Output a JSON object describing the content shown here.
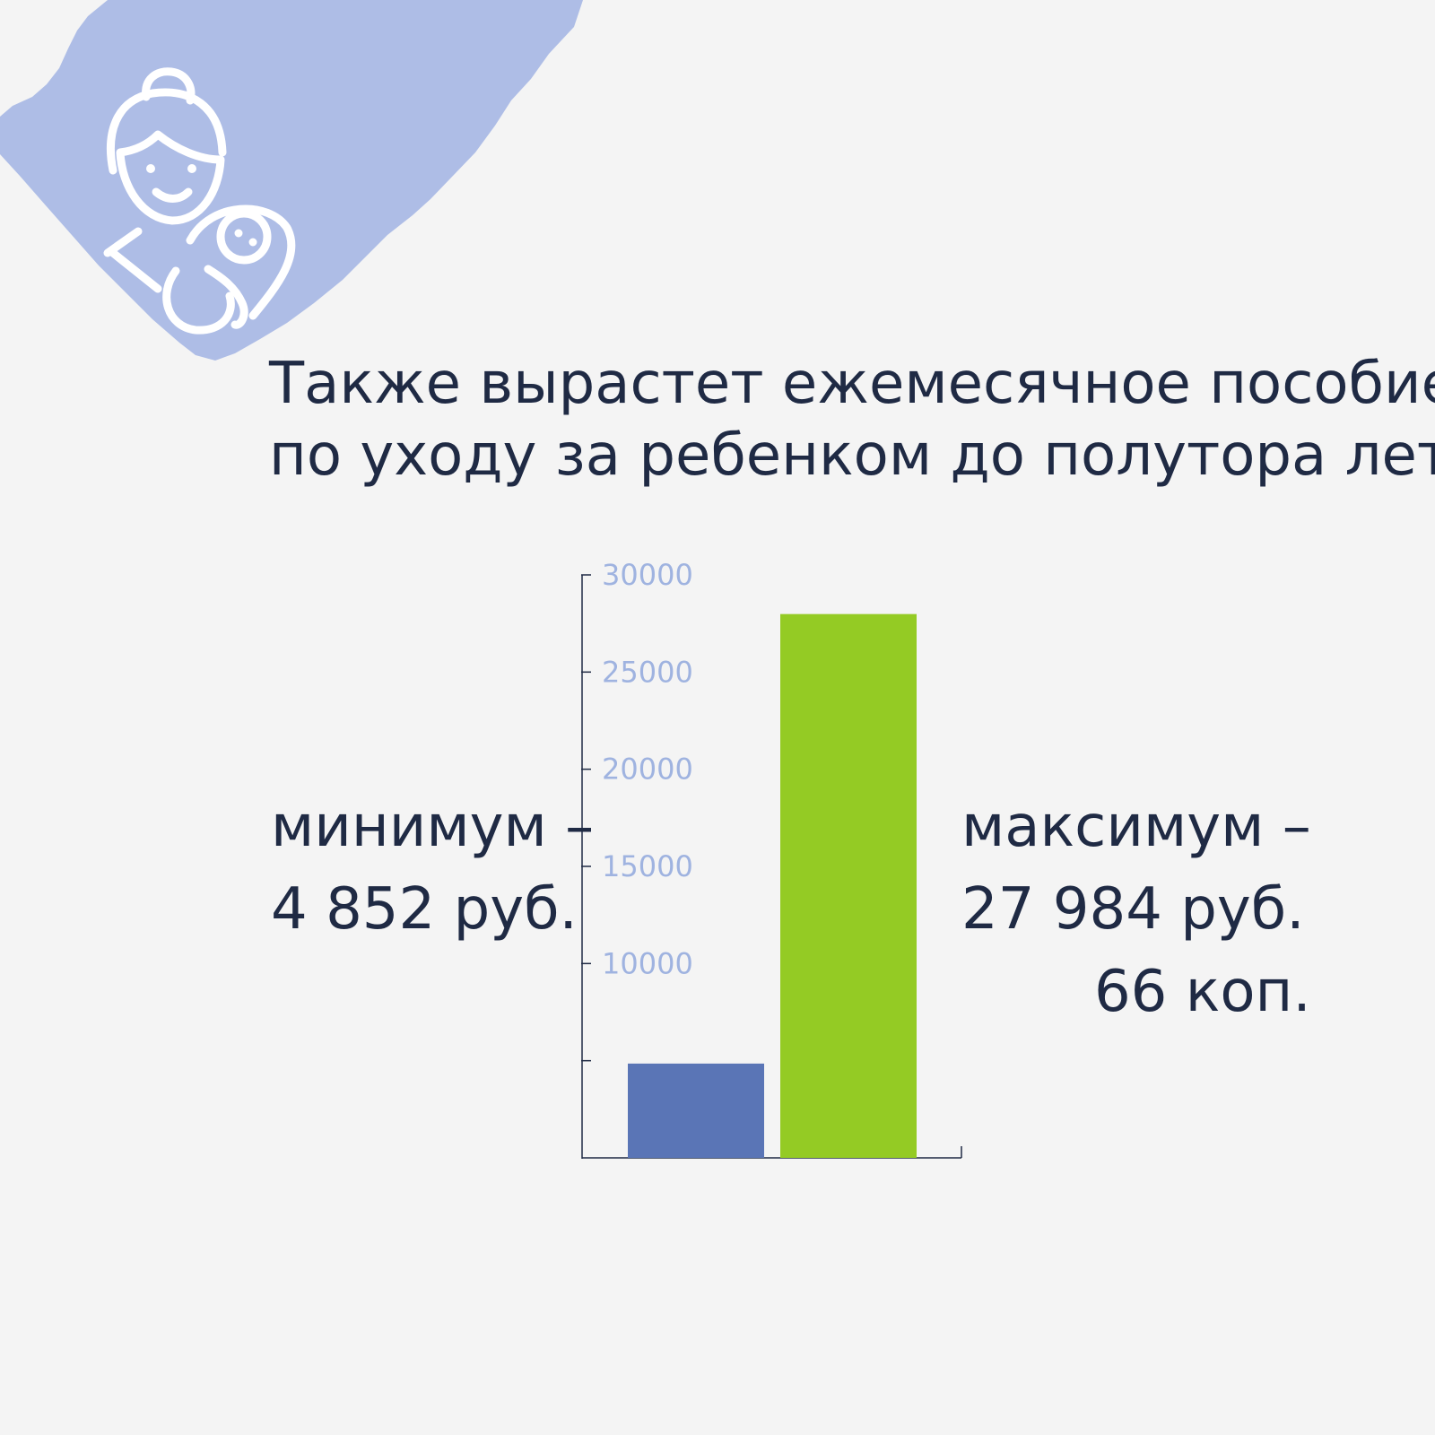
{
  "headline": {
    "line1": "Также вырастет ежемесячное пособие",
    "line2": "по уходу за ребенком до полутора лет."
  },
  "minimum": {
    "label": "минимум –",
    "value": "4 852 руб."
  },
  "maximum": {
    "label": "максимум –",
    "value": "27 984 руб.",
    "value_cont": "66 коп."
  },
  "colors": {
    "background": "#f4f4f4",
    "brush": "#aebde6",
    "text": "#1f2a44",
    "tick_label": "#9fb3e0",
    "bar_min": "#5a75b6",
    "bar_max": "#94cb24"
  },
  "icons": [
    "mother-with-baby-icon"
  ],
  "chart_data": {
    "type": "bar",
    "categories": [
      "минимум",
      "максимум"
    ],
    "values": [
      4852,
      27984.66
    ],
    "ylim": [
      0,
      30000
    ],
    "yticks": [
      5000,
      10000,
      15000,
      20000,
      25000,
      30000
    ],
    "ytick_labels": [
      "",
      "10000",
      "15000",
      "20000",
      "25000",
      "30000"
    ],
    "bar_colors": [
      "#5a75b6",
      "#94cb24"
    ],
    "grid": false,
    "legend": "none"
  }
}
